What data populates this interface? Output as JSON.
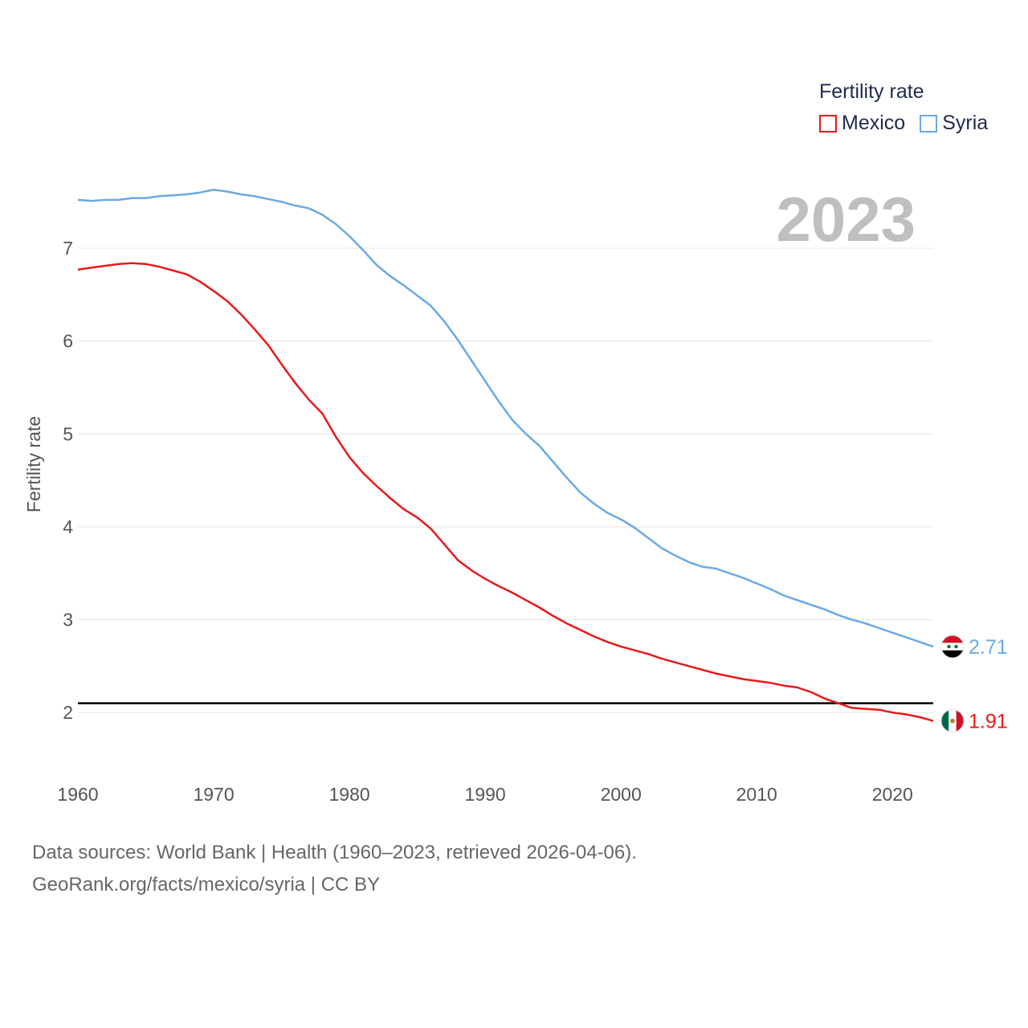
{
  "legend": {
    "title": "Fertility rate",
    "items": [
      {
        "label": "Mexico",
        "color": "#e8191b"
      },
      {
        "label": "Syria",
        "color": "#6aa9e6"
      }
    ]
  },
  "year_label": "2023",
  "source": {
    "line1": "Data sources: World Bank | Health (1960–2023, retrieved 2026-04-06).",
    "line2": "GeoRank.org/facts/mexico/syria | CC BY"
  },
  "chart_data": {
    "type": "line",
    "title": "Fertility rate",
    "xlabel": "",
    "ylabel": "Fertility rate",
    "xlim": [
      1960,
      2023
    ],
    "ylim": [
      1.5,
      7.9
    ],
    "x_ticks": [
      1960,
      1970,
      1980,
      1990,
      2000,
      2010,
      2020
    ],
    "y_ticks": [
      2,
      3,
      4,
      5,
      6,
      7
    ],
    "grid": true,
    "reference_line": {
      "y": 2.1,
      "color": "#000000"
    },
    "x": [
      1960,
      1961,
      1962,
      1963,
      1964,
      1965,
      1966,
      1967,
      1968,
      1969,
      1970,
      1971,
      1972,
      1973,
      1974,
      1975,
      1976,
      1977,
      1978,
      1979,
      1980,
      1981,
      1982,
      1983,
      1984,
      1985,
      1986,
      1987,
      1988,
      1989,
      1990,
      1991,
      1992,
      1993,
      1994,
      1995,
      1996,
      1997,
      1998,
      1999,
      2000,
      2001,
      2002,
      2003,
      2004,
      2005,
      2006,
      2007,
      2008,
      2009,
      2010,
      2011,
      2012,
      2013,
      2014,
      2015,
      2016,
      2017,
      2018,
      2019,
      2020,
      2021,
      2022,
      2023
    ],
    "series": [
      {
        "name": "Mexico",
        "color": "#e8191b",
        "end_label": "1.91",
        "values": [
          6.77,
          6.79,
          6.81,
          6.83,
          6.84,
          6.83,
          6.8,
          6.76,
          6.72,
          6.64,
          6.54,
          6.43,
          6.29,
          6.13,
          5.96,
          5.75,
          5.55,
          5.37,
          5.22,
          4.97,
          4.75,
          4.58,
          4.44,
          4.31,
          4.19,
          4.1,
          3.98,
          3.81,
          3.64,
          3.53,
          3.44,
          3.36,
          3.29,
          3.21,
          3.13,
          3.04,
          2.96,
          2.89,
          2.82,
          2.76,
          2.71,
          2.67,
          2.63,
          2.58,
          2.54,
          2.5,
          2.46,
          2.42,
          2.39,
          2.36,
          2.34,
          2.32,
          2.29,
          2.27,
          2.22,
          2.15,
          2.1,
          2.05,
          2.04,
          2.03,
          2.0,
          1.98,
          1.95,
          1.91
        ]
      },
      {
        "name": "Syria",
        "color": "#6aa9e6",
        "end_label": "2.71",
        "values": [
          7.52,
          7.51,
          7.52,
          7.52,
          7.54,
          7.54,
          7.56,
          7.57,
          7.58,
          7.6,
          7.63,
          7.61,
          7.58,
          7.56,
          7.53,
          7.5,
          7.46,
          7.43,
          7.36,
          7.26,
          7.13,
          6.98,
          6.82,
          6.7,
          6.6,
          6.49,
          6.38,
          6.21,
          6.01,
          5.79,
          5.57,
          5.35,
          5.15,
          5.0,
          4.87,
          4.7,
          4.53,
          4.37,
          4.25,
          4.15,
          4.08,
          3.99,
          3.88,
          3.77,
          3.69,
          3.62,
          3.57,
          3.55,
          3.5,
          3.45,
          3.39,
          3.33,
          3.26,
          3.21,
          3.16,
          3.11,
          3.05,
          3.0,
          2.96,
          2.91,
          2.86,
          2.81,
          2.76,
          2.71
        ]
      }
    ]
  }
}
